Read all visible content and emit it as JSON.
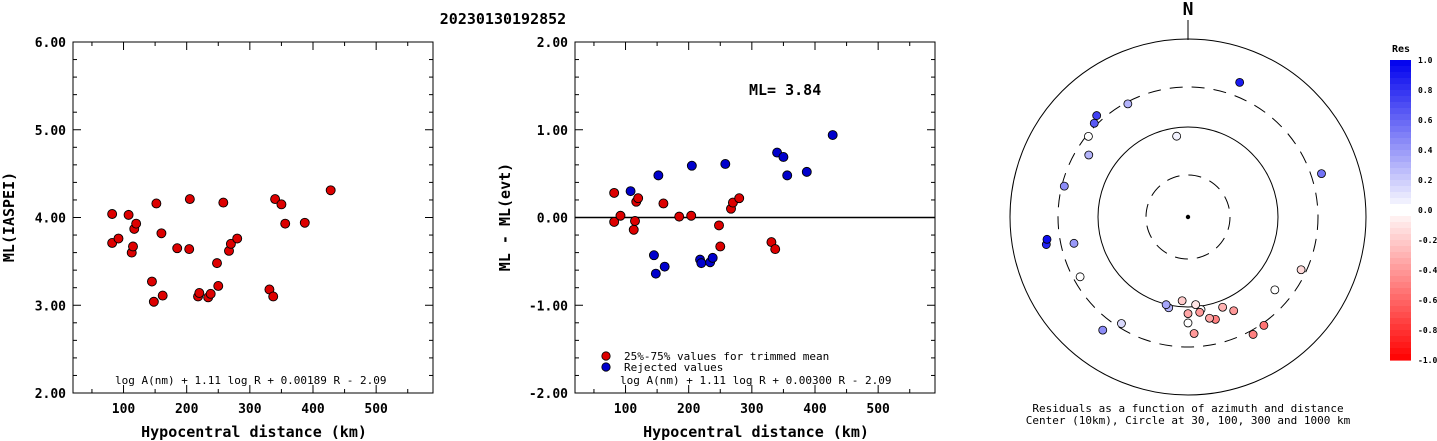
{
  "event_id": "20230130192852",
  "chart_data": [
    {
      "type": "scatter",
      "title": "20230130192852",
      "xlabel": "Hypocentral distance (km)",
      "ylabel": "ML(IASPEI)",
      "xlim": [
        20,
        590
      ],
      "ylim": [
        2.0,
        6.0
      ],
      "xticks": [
        "100",
        "200",
        "300",
        "400",
        "500"
      ],
      "yticks": [
        "2.00",
        "3.00",
        "4.00",
        "5.00",
        "6.00"
      ],
      "formula": "log A(nm) + 1.11 log R + 0.00189 R - 2.09",
      "series": [
        {
          "color": "#dd0000",
          "points": [
            [
              82,
              4.04
            ],
            [
              82,
              3.71
            ],
            [
              92,
              3.76
            ],
            [
              108,
              4.03
            ],
            [
              113,
              3.6
            ],
            [
              115,
              3.67
            ],
            [
              117,
              3.87
            ],
            [
              120,
              3.93
            ],
            [
              145,
              3.27
            ],
            [
              148,
              3.04
            ],
            [
              152,
              4.16
            ],
            [
              160,
              3.82
            ],
            [
              162,
              3.11
            ],
            [
              185,
              3.65
            ],
            [
              204,
              3.64
            ],
            [
              205,
              4.21
            ],
            [
              218,
              3.1
            ],
            [
              220,
              3.14
            ],
            [
              234,
              3.09
            ],
            [
              238,
              3.13
            ],
            [
              248,
              3.48
            ],
            [
              250,
              3.22
            ],
            [
              258,
              4.17
            ],
            [
              267,
              3.62
            ],
            [
              270,
              3.7
            ],
            [
              280,
              3.76
            ],
            [
              331,
              3.18
            ],
            [
              337,
              3.1
            ],
            [
              340,
              4.21
            ],
            [
              350,
              4.15
            ],
            [
              356,
              3.93
            ],
            [
              387,
              3.94
            ],
            [
              428,
              4.31
            ]
          ]
        }
      ]
    },
    {
      "type": "scatter",
      "xlabel": "Hypocentral distance (km)",
      "ylabel": "ML - ML(evt)",
      "xlim": [
        20,
        590
      ],
      "ylim": [
        -2.0,
        2.0
      ],
      "xticks": [
        "100",
        "200",
        "300",
        "400",
        "500"
      ],
      "yticks": [
        "-2.00",
        "-1.00",
        "0.00",
        "1.00",
        "2.00"
      ],
      "annotation": "ML= 3.84",
      "formula": "log A(nm) + 1.11 log R + 0.00300 R - 2.09",
      "legend": [
        {
          "label": "25%-75% values for trimmed mean",
          "color": "#dd0000"
        },
        {
          "label": "Rejected values",
          "color": "#0000cc"
        }
      ],
      "series": [
        {
          "name": "25%-75% values for trimmed mean",
          "color": "#dd0000",
          "points": [
            [
              82,
              0.28
            ],
            [
              82,
              -0.05
            ],
            [
              92,
              0.02
            ],
            [
              113,
              -0.14
            ],
            [
              115,
              -0.04
            ],
            [
              117,
              0.18
            ],
            [
              120,
              0.22
            ],
            [
              160,
              0.16
            ],
            [
              185,
              0.01
            ],
            [
              204,
              0.02
            ],
            [
              248,
              -0.09
            ],
            [
              250,
              -0.33
            ],
            [
              267,
              0.1
            ],
            [
              270,
              0.17
            ],
            [
              280,
              0.22
            ],
            [
              331,
              -0.28
            ],
            [
              337,
              -0.36
            ]
          ]
        },
        {
          "name": "Rejected values",
          "color": "#0000cc",
          "points": [
            [
              108,
              0.3
            ],
            [
              145,
              -0.43
            ],
            [
              148,
              -0.64
            ],
            [
              152,
              0.48
            ],
            [
              162,
              -0.56
            ],
            [
              205,
              0.59
            ],
            [
              218,
              -0.48
            ],
            [
              220,
              -0.52
            ],
            [
              234,
              -0.51
            ],
            [
              238,
              -0.46
            ],
            [
              258,
              0.61
            ],
            [
              340,
              0.74
            ],
            [
              350,
              0.69
            ],
            [
              356,
              0.48
            ],
            [
              387,
              0.52
            ],
            [
              428,
              0.94
            ]
          ]
        }
      ]
    },
    {
      "type": "scatter",
      "subtype": "polar",
      "north_label": "N",
      "caption_line1": "Residuals as a function of azimuth and distance",
      "caption_line2": "Center (10km), Circle at 30, 100, 300 and 1000 km",
      "rings_km": [
        10,
        30,
        100,
        300,
        1000
      ],
      "colorbar": {
        "title": "Res",
        "ticks": [
          "1.0",
          "0.8",
          "0.6",
          "0.4",
          "0.2",
          "0.0",
          "-0.2",
          "-0.4",
          "-0.6",
          "-0.8",
          "-1.0"
        ],
        "max_color": "#0000ee",
        "min_color": "#ff0000"
      },
      "points": [
        {
          "az": 21,
          "dist": 428,
          "res": 0.9
        },
        {
          "az": 72,
          "dist": 389,
          "res": 0.55
        },
        {
          "az": 115,
          "dist": 260,
          "res": -0.15
        },
        {
          "az": 130,
          "dist": 190,
          "res": 0.0
        },
        {
          "az": 145,
          "dist": 318,
          "res": -0.55
        },
        {
          "az": 151,
          "dist": 334,
          "res": -0.5
        },
        {
          "az": 154,
          "dist": 148,
          "res": -0.4
        },
        {
          "az": 159,
          "dist": 120,
          "res": -0.3
        },
        {
          "az": 165,
          "dist": 155,
          "res": -0.5
        },
        {
          "az": 168,
          "dist": 145,
          "res": -0.35
        },
        {
          "az": 172,
          "dist": 110,
          "res": 0.0
        },
        {
          "az": 173,
          "dist": 118,
          "res": -0.4
        },
        {
          "az": 175,
          "dist": 95,
          "res": -0.1
        },
        {
          "az": 177,
          "dist": 208,
          "res": -0.4
        },
        {
          "az": 180,
          "dist": 120,
          "res": -0.35
        },
        {
          "az": 180,
          "dist": 155,
          "res": 0.0
        },
        {
          "az": 184,
          "dist": 86,
          "res": -0.2
        },
        {
          "az": 192,
          "dist": 108,
          "res": 0.3
        },
        {
          "az": 194,
          "dist": 101,
          "res": 0.35
        },
        {
          "az": 212,
          "dist": 266,
          "res": 0.15
        },
        {
          "az": 217,
          "dist": 402,
          "res": 0.45
        },
        {
          "az": 241,
          "dist": 250,
          "res": 0.0
        },
        {
          "az": 257,
          "dist": 210,
          "res": 0.4
        },
        {
          "az": 259,
          "dist": 430,
          "res": 0.85
        },
        {
          "az": 261,
          "dist": 413,
          "res": 0.95
        },
        {
          "az": 284,
          "dist": 280,
          "res": 0.45
        },
        {
          "az": 302,
          "dist": 210,
          "res": 0.3
        },
        {
          "az": 309,
          "dist": 285,
          "res": 0.0
        },
        {
          "az": 315,
          "dist": 320,
          "res": 0.65
        },
        {
          "az": 318,
          "dist": 353,
          "res": 0.75
        },
        {
          "az": 332,
          "dist": 285,
          "res": 0.3
        },
        {
          "az": 352,
          "dist": 81,
          "res": 0.05
        }
      ]
    }
  ]
}
